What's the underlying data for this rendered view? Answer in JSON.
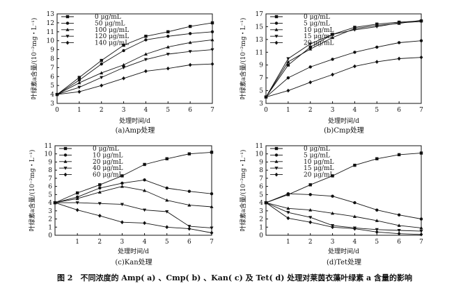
{
  "figure_caption": "图 2　不同浓度的 Amp( a) 、Cmp( b) 、Kan( c) 及 Tet( d) 处理对莱茵衣藻叶绿素 a 含量的影响",
  "chart_data": [
    {
      "type": "line",
      "subcaption": "(a)Amp处理",
      "xlabel": "处理时间/d",
      "ylabel": "叶绿素a含量/(10⁻²mg・L⁻¹)",
      "x": [
        0,
        1,
        2,
        3,
        4,
        5,
        6,
        7
      ],
      "xticks": [
        "0",
        "1",
        "2",
        "3",
        "4",
        "5",
        "6",
        "7"
      ],
      "xlim": [
        0,
        7
      ],
      "ylim": [
        3,
        13
      ],
      "yticks": [
        3,
        4,
        5,
        6,
        7,
        8,
        9,
        10,
        11,
        12,
        13
      ],
      "legend_position": "top-left",
      "series": [
        {
          "name": "0 μg/mL",
          "marker": "square",
          "values": [
            4.0,
            5.9,
            7.8,
            9.5,
            10.5,
            11.0,
            11.6,
            12.0
          ]
        },
        {
          "name": "50 μg/mL",
          "marker": "circle",
          "values": [
            4.0,
            5.6,
            7.4,
            8.9,
            10.1,
            10.5,
            10.8,
            11.0
          ]
        },
        {
          "name": "100 μg/mL",
          "marker": "triangle-up",
          "values": [
            4.0,
            5.3,
            6.4,
            7.3,
            8.5,
            9.3,
            9.8,
            10.1
          ]
        },
        {
          "name": "120 μg/mL",
          "marker": "triangle-down",
          "values": [
            4.0,
            4.8,
            5.9,
            7.0,
            7.9,
            8.5,
            8.8,
            9.0
          ]
        },
        {
          "name": "140 μg/mL",
          "marker": "diamond",
          "values": [
            4.0,
            4.3,
            5.0,
            5.8,
            6.6,
            6.9,
            7.3,
            7.4
          ]
        }
      ]
    },
    {
      "type": "line",
      "subcaption": "(b)Cmp处理",
      "xlabel": "处理时间/d",
      "ylabel": "叶绿素a含量/(10⁻²mg・L⁻¹)",
      "x": [
        0,
        1,
        2,
        3,
        4,
        5,
        6,
        7
      ],
      "xticks": [
        "0",
        "1",
        "2",
        "3",
        "4",
        "5",
        "6",
        "7"
      ],
      "xlim": [
        0,
        7
      ],
      "ylim": [
        3,
        17
      ],
      "yticks": [
        3,
        5,
        7,
        9,
        11,
        13,
        15,
        17
      ],
      "legend_position": "top-left",
      "series": [
        {
          "name": "0 μg/mL",
          "marker": "square",
          "values": [
            4.0,
            9.0,
            11.8,
            13.8,
            14.9,
            15.4,
            15.7,
            15.9
          ]
        },
        {
          "name": "5 μg/mL",
          "marker": "circle",
          "values": [
            4.0,
            7.0,
            8.7,
            9.9,
            11.0,
            11.8,
            12.5,
            12.8
          ]
        },
        {
          "name": "10 μg/mL",
          "marker": "triangle-up",
          "values": [
            4.0,
            9.5,
            11.5,
            13.3,
            14.7,
            15.2,
            15.5,
            16.0
          ]
        },
        {
          "name": "15 μg/mL",
          "marker": "triangle-down",
          "values": [
            4.0,
            10.0,
            12.3,
            13.8,
            14.5,
            15.0,
            15.6,
            15.8
          ]
        },
        {
          "name": "20 μg/mL",
          "marker": "diamond",
          "values": [
            4.0,
            5.0,
            6.3,
            7.5,
            8.8,
            9.5,
            10.0,
            10.2
          ]
        }
      ]
    },
    {
      "type": "line",
      "subcaption": "(c)Kan处理",
      "xlabel": "处理时间/d",
      "ylabel": "叶绿素a含量/(10⁻²mg・L⁻¹)",
      "x": [
        0,
        1,
        2,
        3,
        4,
        5,
        6,
        7
      ],
      "xticks": [
        "",
        "1",
        "2",
        "3",
        "4",
        "5",
        "6",
        "7"
      ],
      "xlim": [
        0,
        7
      ],
      "ylim": [
        0,
        11
      ],
      "yticks": [
        0,
        1,
        2,
        3,
        4,
        5,
        6,
        7,
        8,
        9,
        10,
        11
      ],
      "legend_position": "top-left",
      "series": [
        {
          "name": "0 μg/mL",
          "marker": "square",
          "values": [
            4.0,
            5.2,
            6.2,
            7.3,
            8.7,
            9.4,
            10.0,
            10.2
          ]
        },
        {
          "name": "10 μg/mL",
          "marker": "circle",
          "values": [
            4.0,
            4.7,
            5.8,
            6.4,
            6.8,
            5.8,
            5.4,
            5.1
          ]
        },
        {
          "name": "20 μg/mL",
          "marker": "triangle-up",
          "values": [
            4.0,
            4.5,
            5.3,
            6.0,
            5.5,
            4.3,
            3.7,
            3.5
          ]
        },
        {
          "name": "40 μg/mL",
          "marker": "triangle-down",
          "values": [
            4.0,
            4.0,
            3.9,
            3.8,
            3.1,
            2.9,
            1.1,
            0.9
          ]
        },
        {
          "name": "60 μg/mL",
          "marker": "diamond",
          "values": [
            4.0,
            3.1,
            2.4,
            1.6,
            1.5,
            1.0,
            0.8,
            0.3
          ]
        }
      ]
    },
    {
      "type": "line",
      "subcaption": "(d)Tet处理",
      "xlabel": "处理时间/d",
      "ylabel": "叶绿素a含量/(10⁻²mg・L⁻¹)",
      "x": [
        0,
        1,
        2,
        3,
        4,
        5,
        6,
        7
      ],
      "xticks": [
        "",
        "1",
        "2",
        "3",
        "4",
        "5",
        "6",
        "7"
      ],
      "xlim": [
        0,
        7
      ],
      "ylim": [
        0,
        11
      ],
      "yticks": [
        0,
        1,
        2,
        3,
        4,
        5,
        6,
        7,
        8,
        9,
        10,
        11
      ],
      "legend_position": "top-left",
      "series": [
        {
          "name": "0 μg/mL",
          "marker": "square",
          "values": [
            4.0,
            5.0,
            6.2,
            7.3,
            8.6,
            9.4,
            9.9,
            10.1
          ]
        },
        {
          "name": "5 μg/mL",
          "marker": "circle",
          "values": [
            4.0,
            5.1,
            5.0,
            4.8,
            4.0,
            3.1,
            2.5,
            2.0
          ]
        },
        {
          "name": "10 μg/mL",
          "marker": "triangle-up",
          "values": [
            4.0,
            3.3,
            3.1,
            2.7,
            2.3,
            1.8,
            1.2,
            0.9
          ]
        },
        {
          "name": "15 μg/mL",
          "marker": "triangle-down",
          "values": [
            4.0,
            2.8,
            2.2,
            1.2,
            0.9,
            0.7,
            0.6,
            0.5
          ]
        },
        {
          "name": "20 μg/mL",
          "marker": "diamond",
          "values": [
            4.0,
            2.1,
            1.6,
            1.0,
            0.8,
            0.4,
            0.2,
            0.1
          ]
        }
      ]
    }
  ]
}
